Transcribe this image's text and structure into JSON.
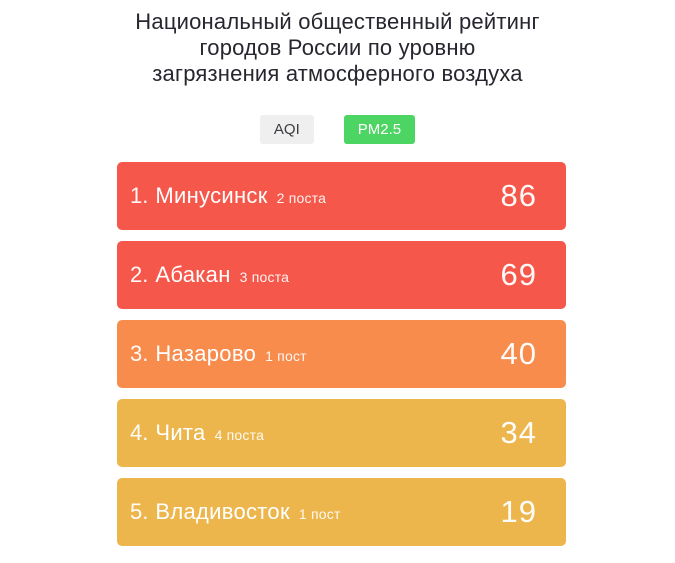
{
  "page": {
    "background": "#ffffff"
  },
  "title": {
    "full": "Национальный общественный рейтинг городов России по уровню загрязнения атмосферного воздуха",
    "lines": [
      "Национальный общественный рейтинг",
      "городов России по уровню",
      "загрязнения атмосферного воздуха"
    ],
    "color": "#26262e"
  },
  "tabs": {
    "items": [
      {
        "label": "AQI",
        "active": false,
        "bg": "#efefef"
      },
      {
        "label": "PM2.5",
        "active": true,
        "bg": "#4cd562"
      }
    ]
  },
  "list": {
    "items": [
      {
        "rank": "1.",
        "city": "Минусинск",
        "posts": "2 поста",
        "value": "86",
        "color": "#f5574b"
      },
      {
        "rank": "2.",
        "city": "Абакан",
        "posts": "3 поста",
        "value": "69",
        "color": "#f5574b"
      },
      {
        "rank": "3.",
        "city": "Назарово",
        "posts": "1 пост",
        "value": "40",
        "color": "#f78c4d"
      },
      {
        "rank": "4.",
        "city": "Чита",
        "posts": "4 поста",
        "value": "34",
        "color": "#ecb64d"
      },
      {
        "rank": "5.",
        "city": "Владивосток",
        "posts": "1 пост",
        "value": "19",
        "color": "#ecb64d"
      }
    ]
  }
}
